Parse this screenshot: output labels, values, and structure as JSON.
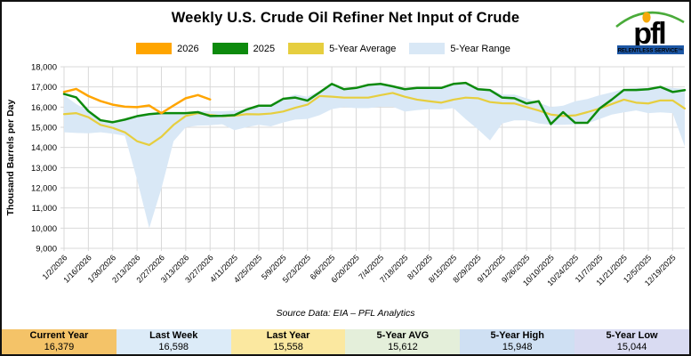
{
  "header": {
    "title": "Weekly U.S. Crude Oil Refiner Net Input of Crude"
  },
  "logo": {
    "text": "pfl",
    "tagline": "RELENTLESS SERVICE™",
    "blue": "#1d57a5",
    "green": "#4aab3a",
    "dot_yellow": "#f6a90a"
  },
  "legend": [
    {
      "label": "2026",
      "color": "#ffa500"
    },
    {
      "label": "2025",
      "color": "#0d8a0d"
    },
    {
      "label": "5-Year Average",
      "color": "#e6ce3f"
    },
    {
      "label": "5-Year Range",
      "color": "#d9e8f6"
    }
  ],
  "footer": {
    "source_note": "Source Data: EIA – PFL Analytics"
  },
  "stats": [
    {
      "label": "Current Year",
      "value": "16,379",
      "bg": "#f4c368"
    },
    {
      "label": "Last Week",
      "value": "16,598",
      "bg": "#dcebf8"
    },
    {
      "label": "Last Year",
      "value": "15,558",
      "bg": "#fbe8a0"
    },
    {
      "label": "5-Year AVG",
      "value": "15,612",
      "bg": "#e4efda"
    },
    {
      "label": "5-Year High",
      "value": "15,948",
      "bg": "#cfe0f3"
    },
    {
      "label": "5-Year Low",
      "value": "15,044",
      "bg": "#d9dbf2"
    }
  ],
  "chart_data": {
    "type": "line",
    "title": "Weekly U.S. Crude Oil Refiner Net Input of Crude",
    "xlabel": "",
    "ylabel": "Thousand Barrels per Day",
    "ylim": [
      9000,
      18000
    ],
    "ytick_step": 1000,
    "grid": true,
    "grid_color": "#d9d9d9",
    "legend_position": "top",
    "x_tick_every": 2,
    "weeks": [
      "1/2/2026",
      "1/9/2026",
      "1/16/2026",
      "1/23/2026",
      "1/30/2026",
      "2/6/2026",
      "2/13/2026",
      "2/20/2026",
      "2/27/2026",
      "3/6/2026",
      "3/13/2026",
      "3/20/2026",
      "3/27/2026",
      "4/4/2025",
      "4/11/2025",
      "4/18/2025",
      "4/25/2025",
      "5/2/2025",
      "5/9/2025",
      "5/16/2025",
      "5/23/2025",
      "5/30/2025",
      "6/6/2025",
      "6/13/2025",
      "6/20/2025",
      "6/27/2025",
      "7/4/2025",
      "7/11/2025",
      "7/18/2025",
      "7/25/2025",
      "8/1/2025",
      "8/8/2025",
      "8/15/2025",
      "8/22/2025",
      "8/29/2025",
      "9/5/2025",
      "9/12/2025",
      "9/19/2025",
      "9/26/2025",
      "10/3/2025",
      "10/10/2025",
      "10/17/2025",
      "10/24/2025",
      "10/31/2025",
      "11/7/2025",
      "11/14/2025",
      "11/21/2025",
      "11/28/2025",
      "12/5/2025",
      "12/12/2025",
      "12/19/2025",
      "12/26/2025"
    ],
    "series": [
      {
        "name": "2026",
        "color": "#ffa500",
        "values": [
          16750,
          16900,
          16550,
          16300,
          16120,
          16020,
          16000,
          16080,
          15700,
          16080,
          16440,
          16598,
          16379
        ]
      },
      {
        "name": "2025",
        "color": "#0d8a0d",
        "values": [
          16650,
          16480,
          15800,
          15350,
          15250,
          15380,
          15550,
          15650,
          15700,
          15700,
          15700,
          15750,
          15558,
          15570,
          15600,
          15880,
          16070,
          16070,
          16410,
          16470,
          16320,
          16730,
          17150,
          16885,
          16950,
          17100,
          17150,
          17030,
          16885,
          16950,
          16950,
          16950,
          17150,
          17200,
          16885,
          16840,
          16470,
          16440,
          16180,
          16290,
          15160,
          15750,
          15220,
          15220,
          15930,
          16370,
          16850,
          16850,
          16885,
          17000,
          16750,
          16840
        ]
      },
      {
        "name": "5-Year Average",
        "color": "#e6ce3f",
        "values": [
          15650,
          15700,
          15500,
          15120,
          14970,
          14750,
          14310,
          14120,
          14530,
          15120,
          15560,
          15700,
          15612,
          15550,
          15570,
          15650,
          15640,
          15680,
          15780,
          15970,
          16120,
          16550,
          16515,
          16470,
          16470,
          16470,
          16590,
          16700,
          16515,
          16370,
          16290,
          16220,
          16370,
          16470,
          16440,
          16250,
          16190,
          16180,
          16000,
          15830,
          15630,
          15560,
          15590,
          15750,
          15930,
          16150,
          16370,
          16220,
          16180,
          16330,
          16330,
          15930
        ]
      }
    ],
    "range_band": {
      "name": "5-Year Range",
      "color": "#d9e8f6",
      "upper": [
        16590,
        16150,
        15800,
        15350,
        15265,
        15380,
        15550,
        15650,
        15700,
        15700,
        15720,
        15810,
        15800,
        15800,
        15820,
        15900,
        16070,
        16070,
        16440,
        16620,
        16515,
        16800,
        17150,
        16900,
        16950,
        17100,
        17150,
        17030,
        16900,
        16950,
        16950,
        16950,
        17150,
        17200,
        16950,
        16900,
        16620,
        16620,
        16440,
        16220,
        16000,
        16070,
        16290,
        16400,
        16590,
        16730,
        16900,
        16950,
        16950,
        17000,
        16950,
        16900
      ],
      "lower": [
        14750,
        14720,
        14700,
        14750,
        14680,
        14575,
        12400,
        10000,
        11960,
        14310,
        15000,
        15080,
        15100,
        15147,
        14855,
        15000,
        15119,
        15045,
        15235,
        15383,
        15412,
        15600,
        15900,
        16000,
        15950,
        15950,
        16020,
        16020,
        15780,
        15850,
        15900,
        15880,
        15950,
        15400,
        14900,
        14350,
        15190,
        15340,
        15340,
        15190,
        15120,
        15120,
        15150,
        15190,
        15410,
        15630,
        15740,
        15830,
        15700,
        15740,
        15700,
        14050
      ]
    }
  }
}
